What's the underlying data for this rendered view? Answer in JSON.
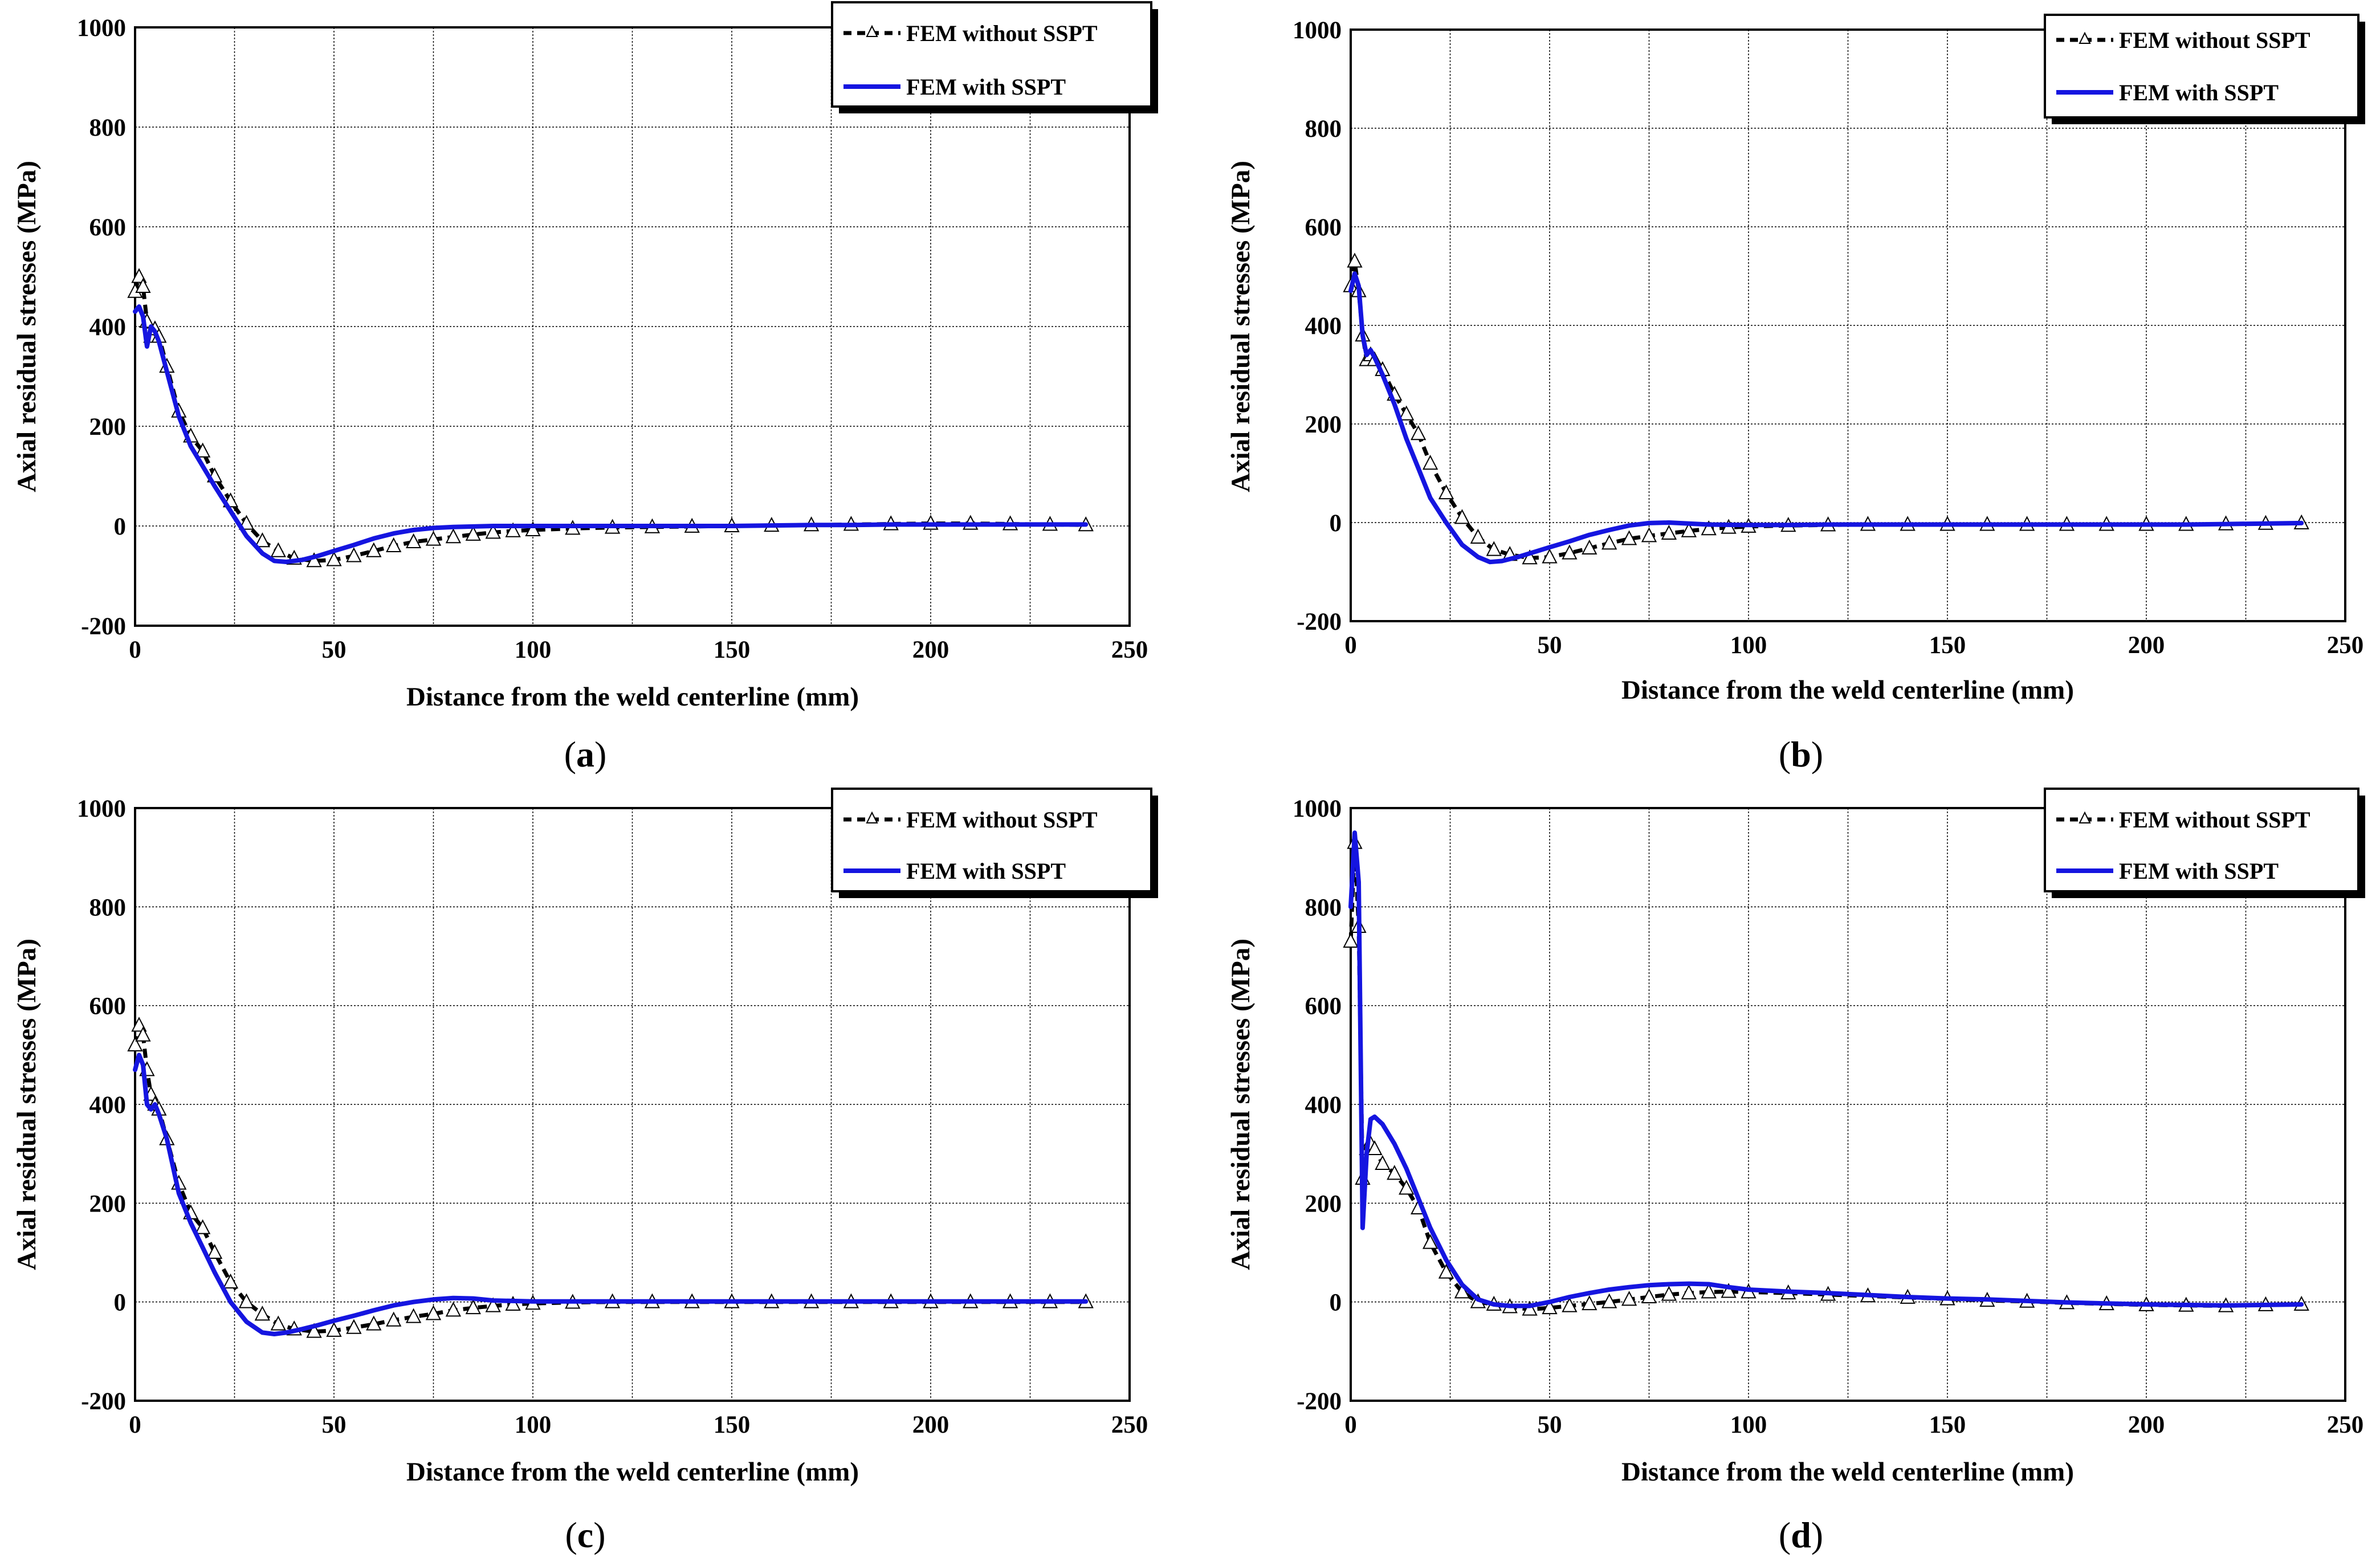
{
  "colors": {
    "with_sspt": "#1515e0",
    "without_sspt": "#000000",
    "grid": "#000000",
    "background": "#ffffff"
  },
  "chart_data": [
    {
      "panel": "(a)",
      "caption_letter": "a",
      "type": "line",
      "xlabel": "Distance from the weld centerline (mm)",
      "ylabel": "Axial residual stresses (MPa)",
      "xlim": [
        0,
        250
      ],
      "ylim": [
        -200,
        1000
      ],
      "xticks": [
        0,
        50,
        100,
        150,
        200,
        250
      ],
      "yticks": [
        -200,
        0,
        200,
        400,
        600,
        800,
        1000
      ],
      "grid": true,
      "legend_position": "top-right",
      "series": [
        {
          "name": "FEM without SSPT",
          "style": "dashed-triangles",
          "x": [
            0,
            1,
            2,
            3,
            4,
            5,
            6,
            8,
            11,
            14,
            17,
            20,
            24,
            28,
            32,
            36,
            40,
            45,
            50,
            55,
            60,
            65,
            70,
            75,
            80,
            85,
            90,
            95,
            100,
            110,
            120,
            130,
            140,
            150,
            160,
            170,
            180,
            190,
            200,
            210,
            220,
            230,
            239
          ],
          "y": [
            470,
            500,
            480,
            410,
            380,
            395,
            380,
            320,
            230,
            180,
            150,
            100,
            50,
            5,
            -30,
            -50,
            -65,
            -70,
            -68,
            -60,
            -50,
            -40,
            -32,
            -27,
            -22,
            -17,
            -13,
            -10,
            -8,
            -5,
            -3,
            -2,
            -1,
            0,
            1,
            2,
            3,
            4,
            5,
            5,
            4,
            3,
            2
          ]
        },
        {
          "name": "FEM with SSPT",
          "style": "solid",
          "x": [
            0,
            1,
            2,
            3,
            4,
            5,
            6,
            8,
            11,
            14,
            17,
            20,
            24,
            28,
            32,
            35,
            38,
            42,
            46,
            50,
            55,
            60,
            65,
            70,
            75,
            80,
            85,
            90,
            100,
            110,
            120,
            130,
            140,
            150,
            160,
            170,
            180,
            190,
            200,
            210,
            220,
            230,
            239
          ],
          "y": [
            430,
            440,
            420,
            360,
            400,
            390,
            370,
            310,
            220,
            160,
            120,
            80,
            30,
            -20,
            -55,
            -70,
            -72,
            -68,
            -60,
            -50,
            -38,
            -25,
            -15,
            -8,
            -4,
            -2,
            -1,
            0,
            0,
            0,
            0,
            0,
            0,
            0,
            1,
            2,
            2,
            3,
            3,
            3,
            3,
            3,
            3
          ]
        }
      ]
    },
    {
      "panel": "(b)",
      "caption_letter": "b",
      "type": "line",
      "xlabel": "Distance from the weld centerline (mm)",
      "ylabel": "Axial residual stresses (MPa)",
      "xlim": [
        0,
        250
      ],
      "ylim": [
        -200,
        1000
      ],
      "xticks": [
        0,
        50,
        100,
        150,
        200,
        250
      ],
      "yticks": [
        -200,
        0,
        200,
        400,
        600,
        800,
        1000
      ],
      "grid": true,
      "legend_position": "top-right",
      "series": [
        {
          "name": "FEM without SSPT",
          "style": "dashed-triangles",
          "x": [
            0,
            1,
            2,
            3,
            4,
            5,
            6,
            8,
            11,
            14,
            17,
            20,
            24,
            28,
            32,
            36,
            40,
            45,
            50,
            55,
            60,
            65,
            70,
            75,
            80,
            85,
            90,
            95,
            100,
            110,
            120,
            130,
            140,
            150,
            160,
            170,
            180,
            190,
            200,
            210,
            220,
            230,
            239
          ],
          "y": [
            480,
            530,
            470,
            380,
            330,
            340,
            330,
            310,
            260,
            220,
            180,
            120,
            60,
            10,
            -30,
            -55,
            -65,
            -72,
            -70,
            -62,
            -52,
            -42,
            -33,
            -27,
            -22,
            -17,
            -13,
            -10,
            -8,
            -6,
            -5,
            -4,
            -4,
            -4,
            -4,
            -4,
            -4,
            -4,
            -4,
            -4,
            -3,
            -2,
            -1
          ]
        },
        {
          "name": "FEM with SSPT",
          "style": "solid",
          "x": [
            0,
            1,
            2,
            3,
            4,
            5,
            6,
            8,
            11,
            14,
            17,
            20,
            24,
            28,
            32,
            35,
            38,
            42,
            46,
            50,
            55,
            60,
            65,
            70,
            75,
            80,
            85,
            90,
            100,
            110,
            120,
            130,
            140,
            150,
            160,
            170,
            180,
            190,
            200,
            210,
            220,
            230,
            239
          ],
          "y": [
            470,
            505,
            480,
            380,
            340,
            350,
            335,
            300,
            240,
            170,
            110,
            50,
            0,
            -45,
            -70,
            -80,
            -78,
            -70,
            -60,
            -50,
            -38,
            -25,
            -15,
            -6,
            -1,
            0,
            -2,
            -4,
            -5,
            -5,
            -4,
            -4,
            -4,
            -4,
            -4,
            -4,
            -4,
            -4,
            -4,
            -4,
            -3,
            -2,
            -1
          ]
        }
      ]
    },
    {
      "panel": "(c)",
      "caption_letter": "c",
      "type": "line",
      "xlabel": "Distance from the weld centerline (mm)",
      "ylabel": "Axial residual stresses (MPa)",
      "xlim": [
        0,
        250
      ],
      "ylim": [
        -200,
        1000
      ],
      "xticks": [
        0,
        50,
        100,
        150,
        200,
        250
      ],
      "yticks": [
        -200,
        0,
        200,
        400,
        600,
        800,
        1000
      ],
      "grid": true,
      "legend_position": "top-right",
      "series": [
        {
          "name": "FEM without SSPT",
          "style": "dashed-triangles",
          "x": [
            0,
            1,
            2,
            3,
            4,
            5,
            6,
            8,
            11,
            14,
            17,
            20,
            24,
            28,
            32,
            36,
            40,
            45,
            50,
            55,
            60,
            65,
            70,
            75,
            80,
            85,
            90,
            95,
            100,
            110,
            120,
            130,
            140,
            150,
            160,
            170,
            180,
            190,
            200,
            210,
            220,
            230,
            239
          ],
          "y": [
            520,
            560,
            540,
            470,
            420,
            400,
            390,
            330,
            240,
            180,
            150,
            100,
            40,
            0,
            -25,
            -45,
            -55,
            -60,
            -58,
            -52,
            -45,
            -37,
            -30,
            -24,
            -17,
            -12,
            -8,
            -5,
            -3,
            -1,
            0,
            0,
            0,
            0,
            0,
            0,
            0,
            0,
            0,
            0,
            0,
            0,
            0
          ]
        },
        {
          "name": "FEM with SSPT",
          "style": "solid",
          "x": [
            0,
            1,
            2,
            3,
            4,
            5,
            6,
            8,
            11,
            14,
            17,
            20,
            24,
            28,
            32,
            35,
            38,
            42,
            46,
            50,
            55,
            60,
            65,
            70,
            75,
            80,
            85,
            90,
            100,
            110,
            120,
            130,
            140,
            150,
            160,
            170,
            180,
            190,
            200,
            210,
            220,
            230,
            239
          ],
          "y": [
            470,
            500,
            480,
            400,
            390,
            400,
            380,
            330,
            220,
            160,
            110,
            60,
            0,
            -40,
            -62,
            -65,
            -62,
            -55,
            -47,
            -38,
            -28,
            -17,
            -7,
            0,
            5,
            8,
            7,
            3,
            1,
            1,
            1,
            1,
            1,
            1,
            1,
            1,
            1,
            1,
            1,
            1,
            1,
            1,
            1
          ]
        }
      ]
    },
    {
      "panel": "(d)",
      "caption_letter": "d",
      "type": "line",
      "xlabel": "Distance from the weld centerline (mm)",
      "ylabel": "Axial residual stresses (MPa)",
      "xlim": [
        0,
        250
      ],
      "ylim": [
        -200,
        1000
      ],
      "xticks": [
        0,
        50,
        100,
        150,
        200,
        250
      ],
      "yticks": [
        -200,
        0,
        200,
        400,
        600,
        800,
        1000
      ],
      "grid": true,
      "legend_position": "top-right",
      "series": [
        {
          "name": "FEM without SSPT",
          "style": "dashed-triangles",
          "x": [
            0,
            1,
            2,
            3,
            4,
            5,
            6,
            8,
            11,
            14,
            17,
            20,
            24,
            28,
            32,
            36,
            40,
            45,
            50,
            55,
            60,
            65,
            70,
            75,
            80,
            85,
            90,
            95,
            100,
            110,
            120,
            130,
            140,
            150,
            160,
            170,
            180,
            190,
            200,
            210,
            220,
            230,
            239
          ],
          "y": [
            730,
            930,
            760,
            250,
            310,
            320,
            310,
            280,
            260,
            230,
            190,
            120,
            60,
            20,
            0,
            -5,
            -10,
            -15,
            -12,
            -8,
            -4,
            0,
            5,
            10,
            15,
            18,
            20,
            21,
            20,
            18,
            15,
            12,
            9,
            6,
            3,
            1,
            -2,
            -4,
            -6,
            -7,
            -8,
            -6,
            -5
          ]
        },
        {
          "name": "FEM with SSPT",
          "style": "solid",
          "x": [
            0,
            1,
            2,
            3,
            4,
            5,
            6,
            8,
            11,
            14,
            17,
            20,
            24,
            28,
            32,
            36,
            40,
            45,
            50,
            55,
            60,
            65,
            70,
            75,
            80,
            85,
            90,
            95,
            100,
            110,
            120,
            130,
            140,
            150,
            160,
            170,
            180,
            190,
            200,
            210,
            220,
            230,
            239
          ],
          "y": [
            800,
            950,
            850,
            150,
            300,
            370,
            375,
            360,
            320,
            270,
            210,
            150,
            85,
            35,
            5,
            -5,
            -8,
            -8,
            0,
            10,
            18,
            25,
            30,
            34,
            36,
            37,
            36,
            30,
            25,
            21,
            18,
            14,
            10,
            7,
            5,
            2,
            -1,
            -3,
            -5,
            -6,
            -7,
            -6,
            -5
          ]
        }
      ]
    }
  ]
}
